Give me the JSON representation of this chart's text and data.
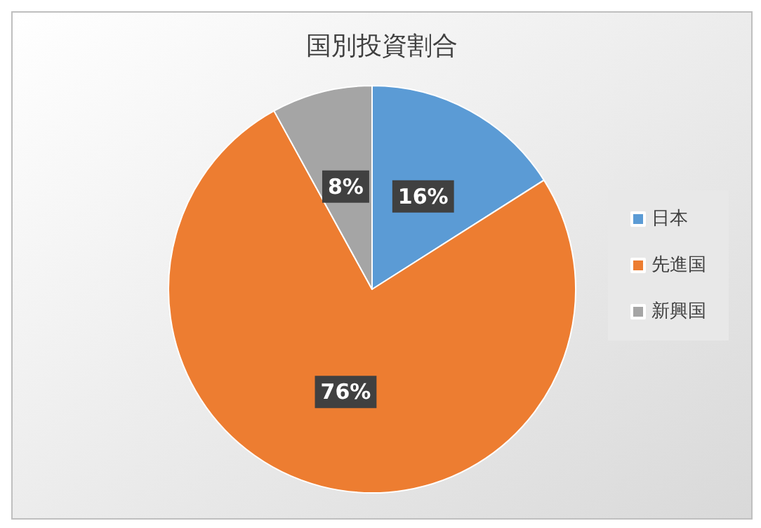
{
  "chart_data": {
    "type": "pie",
    "title": "国別投資割合",
    "categories": [
      "日本",
      "先進国",
      "新興国"
    ],
    "values": [
      16,
      76,
      8
    ],
    "colors": [
      "#5b9bd5",
      "#ed7d31",
      "#a5a5a5"
    ],
    "value_labels": [
      "16%",
      "76%",
      "8%"
    ],
    "legend": "right"
  }
}
